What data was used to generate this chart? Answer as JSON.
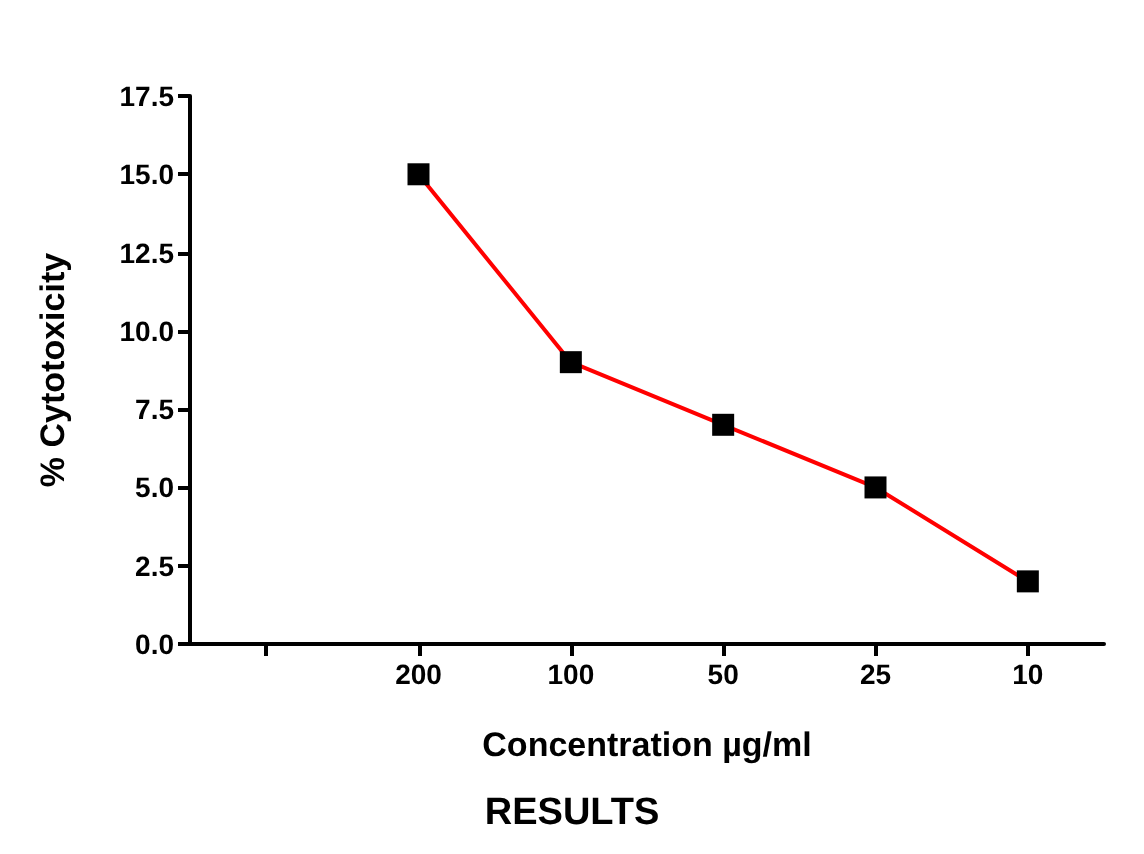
{
  "chart_data": {
    "type": "line",
    "xlabel": "Concentration µg/ml",
    "ylabel": "% Cytotoxicity",
    "categories": [
      null,
      "200",
      "100",
      "50",
      "25",
      "10"
    ],
    "series": [
      {
        "color": "#ff0000",
        "values": [
          null,
          15,
          9,
          7,
          5,
          2
        ]
      }
    ],
    "ylim": [
      0,
      17.5
    ],
    "yticks": [
      {
        "value": 0,
        "label": "0.0"
      },
      {
        "value": 2.5,
        "label": "2.5"
      },
      {
        "value": 5,
        "label": "5.0"
      },
      {
        "value": 7.5,
        "label": "7.5"
      },
      {
        "value": 10,
        "label": "10.0"
      },
      {
        "value": 12.5,
        "label": "12.5"
      },
      {
        "value": 15,
        "label": "15.0"
      },
      {
        "value": 17.5,
        "label": "17.5"
      }
    ],
    "marker": "square",
    "line_style": "solid",
    "grid": false,
    "annotations": [
      "RESULTS"
    ]
  }
}
